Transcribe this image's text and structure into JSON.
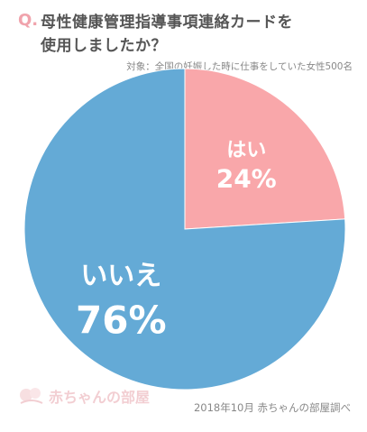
{
  "header": {
    "q_mark": "Q.",
    "title_lines": [
      "母性健康管理指導事項連絡カードを",
      "使用しましたか？"
    ],
    "subtitle": "対象：全国の妊娠した時に仕事をしていた女性500名"
  },
  "chart_data": {
    "type": "pie",
    "categories": [
      "はい",
      "いいえ"
    ],
    "values": [
      24,
      76
    ],
    "value_labels": [
      "24%",
      "76%"
    ],
    "colors": [
      "#f9a7aa",
      "#64aad6"
    ],
    "label_color": "#ffffff",
    "start": "12 o'clock",
    "direction": "clockwise"
  },
  "footer": {
    "source": "2018年10月 赤ちゃんの部屋調べ",
    "logo_text": "赤ちゃんの部屋"
  }
}
